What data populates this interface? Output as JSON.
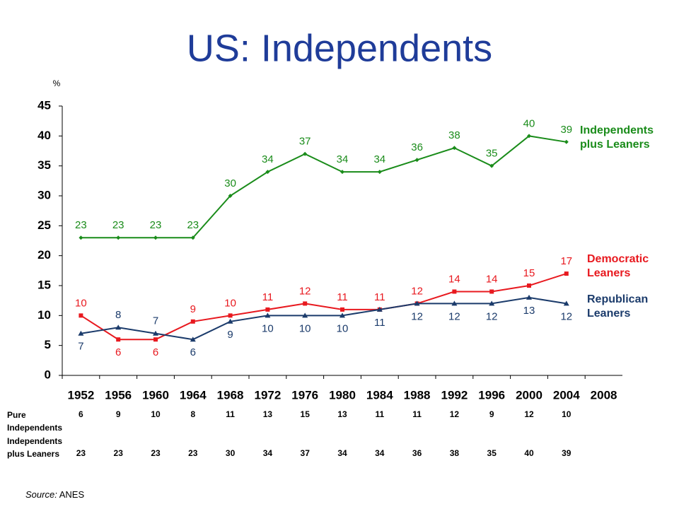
{
  "title": "US: Independents",
  "chart_data": {
    "type": "line",
    "y_unit": "%",
    "categories": [
      "1952",
      "1956",
      "1960",
      "1964",
      "1968",
      "1972",
      "1976",
      "1980",
      "1984",
      "1988",
      "1992",
      "1996",
      "2000",
      "2004",
      "2008"
    ],
    "ylim": [
      0,
      45
    ],
    "yticks": [
      0,
      5,
      10,
      15,
      20,
      25,
      30,
      35,
      40,
      45
    ],
    "series": [
      {
        "name": "Independents plus Leaners",
        "color": "#1a8c1a",
        "marker": "diamond",
        "values": [
          23,
          23,
          23,
          23,
          30,
          34,
          37,
          34,
          34,
          36,
          38,
          35,
          40,
          39,
          null
        ]
      },
      {
        "name": "Democratic Leaners",
        "color": "#e8191f",
        "marker": "square",
        "values": [
          10,
          6,
          6,
          9,
          10,
          11,
          12,
          11,
          11,
          12,
          14,
          14,
          15,
          17,
          null
        ]
      },
      {
        "name": "Republican Leaners",
        "color": "#1b3b6b",
        "marker": "triangle",
        "values": [
          7,
          8,
          7,
          6,
          9,
          10,
          10,
          10,
          11,
          12,
          12,
          12,
          13,
          12,
          null
        ]
      }
    ]
  },
  "table": {
    "rows": [
      {
        "label": "Pure Independents",
        "values": [
          6,
          9,
          10,
          8,
          11,
          13,
          15,
          13,
          11,
          11,
          12,
          9,
          12,
          10
        ]
      },
      {
        "label": "Independents plus Leaners",
        "values": [
          23,
          23,
          23,
          23,
          30,
          34,
          37,
          34,
          34,
          36,
          38,
          35,
          40,
          39
        ]
      }
    ]
  },
  "source_label": "Source:",
  "source": "ANES"
}
